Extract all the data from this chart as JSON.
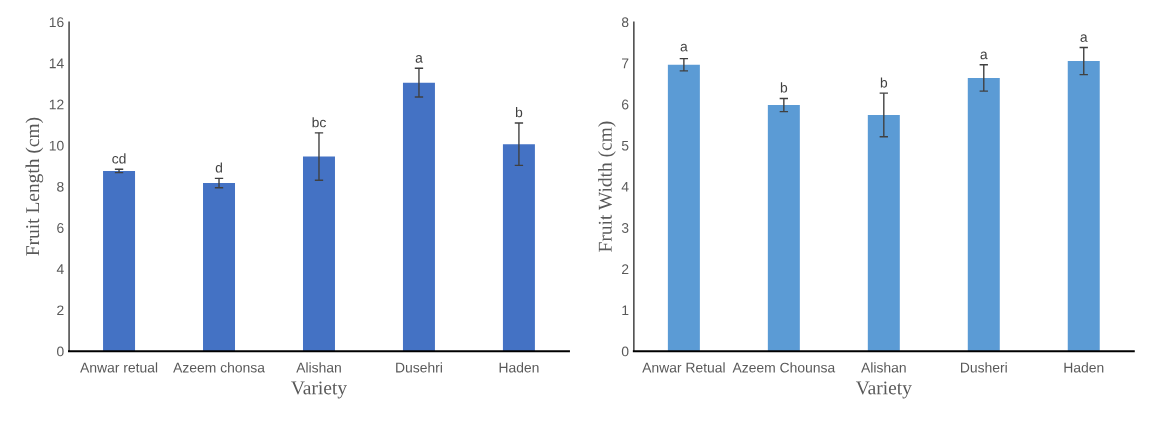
{
  "chart_data": [
    {
      "type": "bar",
      "xlabel": "Variety",
      "ylabel": "Fruit Length (cm)",
      "categories": [
        "Anwar retual",
        "Azeem chonsa",
        "Alishan",
        "Dusehri",
        "Haden"
      ],
      "values": [
        8.76,
        8.17,
        9.46,
        13.05,
        10.06
      ],
      "errors": [
        0.08,
        0.23,
        1.15,
        0.7,
        1.03
      ],
      "color": "#4472c4",
      "ylim": [
        0,
        16
      ],
      "yticks": [
        0,
        2,
        4,
        6,
        8,
        10,
        12,
        14,
        16
      ],
      "grid": false,
      "annotations": [
        {
          "text": "cd",
          "x": "Anwar retual",
          "y": 8.85
        },
        {
          "text": "d",
          "x": "Azeem chonsa",
          "y": 8.41
        },
        {
          "text": "bc",
          "x": "Alishan",
          "y": 10.61
        },
        {
          "text": "a",
          "x": "Dusehri",
          "y": 13.75
        },
        {
          "text": "b",
          "x": "Haden",
          "y": 11.1
        }
      ]
    },
    {
      "type": "bar",
      "xlabel": "Variety",
      "ylabel": "Fruit Width (cm)",
      "categories": [
        "Anwar Retual",
        "Azeem Chounsa",
        "Alishan",
        "Dusheri",
        "Haden"
      ],
      "values": [
        6.96,
        5.98,
        5.74,
        6.64,
        7.05
      ],
      "errors": [
        0.15,
        0.16,
        0.53,
        0.32,
        0.33
      ],
      "color": "#5b9bd5",
      "ylim": [
        0,
        8
      ],
      "yticks": [
        0,
        1,
        2,
        3,
        4,
        5,
        6,
        7,
        8
      ],
      "grid": false,
      "annotations": [
        {
          "text": "a",
          "x": "Anwar Retual",
          "y": 7.15
        },
        {
          "text": "b",
          "x": "Azeem Chounsa",
          "y": 6.15
        },
        {
          "text": "b",
          "x": "Alishan",
          "y": 6.27
        },
        {
          "text": "a",
          "x": "Dusheri",
          "y": 6.96
        },
        {
          "text": "a",
          "x": "Haden",
          "y": 7.38
        }
      ]
    }
  ]
}
